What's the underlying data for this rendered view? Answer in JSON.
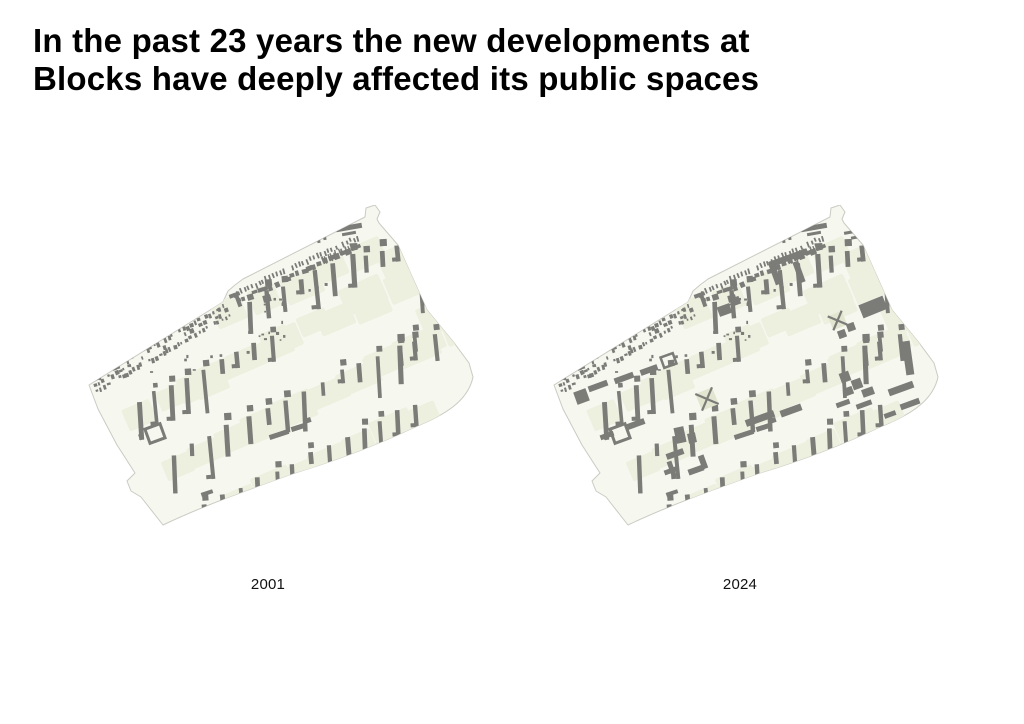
{
  "slide": {
    "title": "In the past 23 years the new developments at\nBlocks have deeply affected its public spaces",
    "background_color": "#ffffff"
  },
  "maps": [
    {
      "id": "map-2001",
      "label": "2001",
      "description": "Figure-ground map of the Blocks estate in 2001"
    },
    {
      "id": "map-2024",
      "label": "2024",
      "description": "Figure-ground map of the Blocks estate in 2024 with denser new developments"
    }
  ],
  "colors": {
    "title_text": "#000000",
    "caption_text": "#111111",
    "estate_base": "#f6f7ef",
    "block_patch": "#edefdf",
    "building": "#7b7b78",
    "boundary_stroke": "#c9cbc3",
    "construction_patch": "#e2e5d0",
    "outside": "#ffffff"
  }
}
